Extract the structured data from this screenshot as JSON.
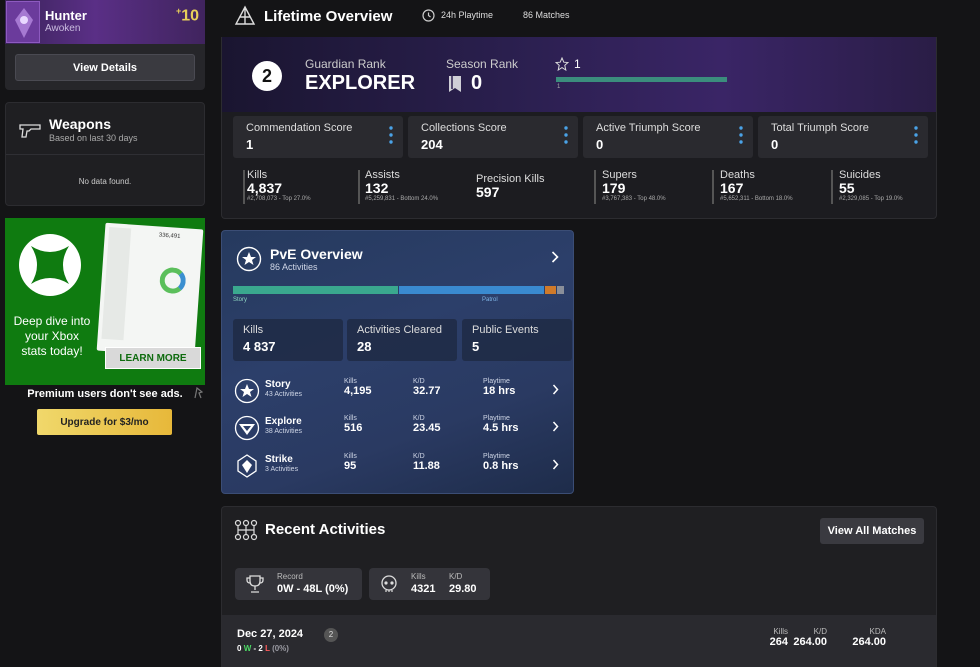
{
  "character": {
    "class_name": "Hunter",
    "race": "Awoken",
    "light_prefix": "+",
    "light": "10",
    "view_details_label": "View Details"
  },
  "weapons": {
    "title": "Weapons",
    "subtitle": "Based on last 30 days",
    "empty_text": "No data found."
  },
  "ad": {
    "headline": "Deep dive into your Xbox stats today!",
    "button_label": "LEARN MORE",
    "screenshot_header": "336,491",
    "premium_text": "Premium users don't see ads.",
    "upgrade_label": "Upgrade for $3/mo"
  },
  "lifetime": {
    "title": "Lifetime Overview",
    "playtime": "24h Playtime",
    "matches": "86 Matches",
    "guardian_rank_label": "Guardian Rank",
    "guardian_rank_number": "2",
    "guardian_rank_name": "EXPLORER",
    "season_rank_label": "Season Rank",
    "season_rank_value": "0",
    "rank_level": "1",
    "rank_bar_label": "1",
    "scores": [
      {
        "label": "Commendation Score",
        "value": "1"
      },
      {
        "label": "Collections Score",
        "value": "204"
      },
      {
        "label": "Active Triumph Score",
        "value": "0"
      },
      {
        "label": "Total Triumph Score",
        "value": "0"
      }
    ],
    "stats": [
      {
        "label": "Kills",
        "value": "4,837",
        "rank": "#2,708,073 - Top 27.0%"
      },
      {
        "label": "Assists",
        "value": "132",
        "rank": "#5,259,831 - Bottom 24.0%"
      },
      {
        "label": "Precision Kills",
        "value": "597",
        "rank": ""
      },
      {
        "label": "Supers",
        "value": "179",
        "rank": "#3,767,383 - Top 48.0%"
      },
      {
        "label": "Deaths",
        "value": "167",
        "rank": "#5,652,311 - Bottom 18.0%"
      },
      {
        "label": "Suicides",
        "value": "55",
        "rank": "#2,329,085 - Top 19.0%"
      }
    ]
  },
  "pve": {
    "title": "PvE Overview",
    "subtitle": "86 Activities",
    "segments": [
      {
        "label": "Story",
        "fraction": 0.5,
        "color": "#3aa88e"
      },
      {
        "label": "Patrol",
        "fraction": 0.442,
        "color": "#3a8ad0"
      },
      {
        "label": "",
        "fraction": 0.035,
        "color": "#d07a2a"
      },
      {
        "label": "",
        "fraction": 0.023,
        "color": "#8a8f9a"
      }
    ],
    "summary": [
      {
        "label": "Kills",
        "value": "4 837"
      },
      {
        "label": "Activities Cleared",
        "value": "28"
      },
      {
        "label": "Public Events",
        "value": "5"
      }
    ],
    "col_kills": "Kills",
    "col_kd": "K/D",
    "col_playtime": "Playtime",
    "activities": [
      {
        "name": "Story",
        "count": "43 Activities",
        "kills": "4,195",
        "kd": "32.77",
        "playtime": "18 hrs"
      },
      {
        "name": "Explore",
        "count": "38 Activities",
        "kills": "516",
        "kd": "23.45",
        "playtime": "4.5 hrs"
      },
      {
        "name": "Strike",
        "count": "3 Activities",
        "kills": "95",
        "kd": "11.88",
        "playtime": "0.8 hrs"
      }
    ]
  },
  "recent": {
    "title": "Recent Activities",
    "view_all_label": "View All Matches",
    "record_label": "Record",
    "record_value": "0W - 48L (0%)",
    "kills_label": "Kills",
    "kills_value": "4321",
    "kd_label": "K/D",
    "kd_value": "29.80",
    "day": {
      "date": "Dec 27, 2024",
      "count": "2",
      "wins": "0",
      "w_letter": "W",
      "dash": "-",
      "losses": "2",
      "l_letter": "L",
      "pct": "(0%)",
      "kills_label": "Kills",
      "kills": "264",
      "kd_label": "K/D",
      "kd": "264.00",
      "kda_label": "KDA",
      "kda": "264.00"
    }
  }
}
